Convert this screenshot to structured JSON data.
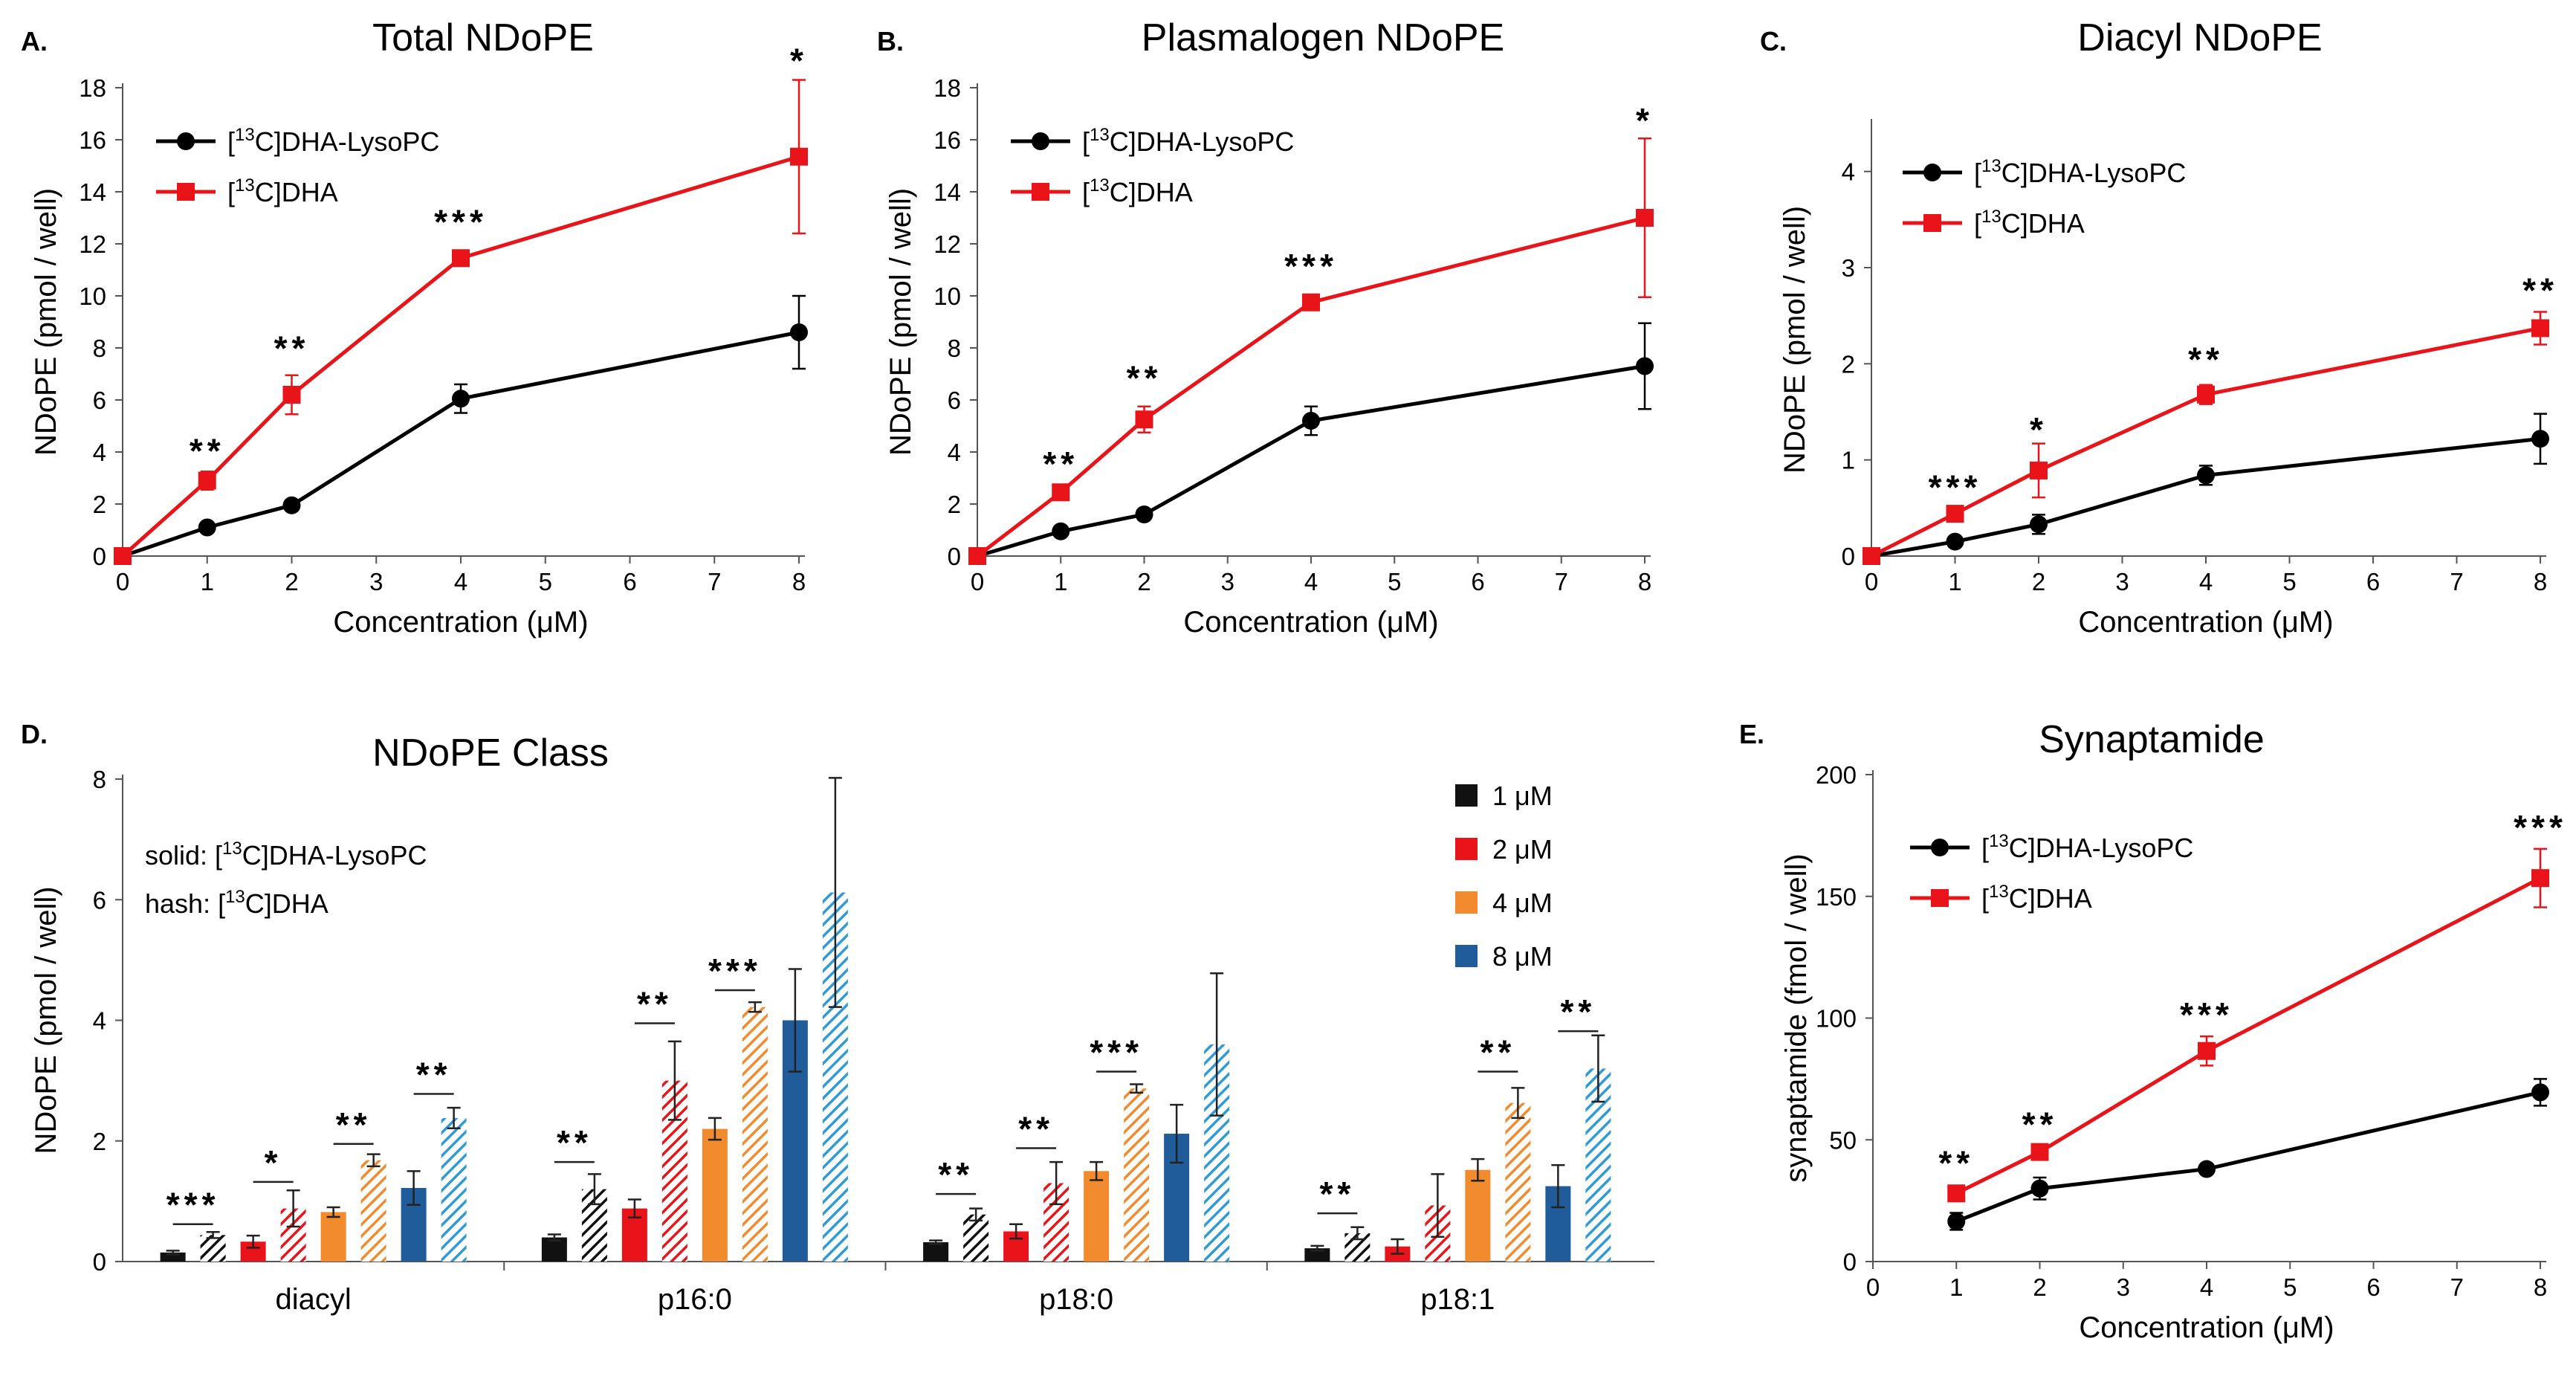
{
  "chart_data": [
    {
      "id": "A",
      "panel_label": "A.",
      "type": "line",
      "title": "Total NDoPE",
      "xlabel": "Concentration (μM)",
      "ylabel": "NDoPE (pmol / well)",
      "xlim": [
        0,
        8
      ],
      "ylim": [
        0,
        18
      ],
      "xticks": [
        "0",
        "1",
        "2",
        "3",
        "4",
        "5",
        "6",
        "7",
        "8"
      ],
      "yticks": [
        "0",
        "2",
        "4",
        "6",
        "8",
        "10",
        "12",
        "14",
        "16",
        "18"
      ],
      "x": [
        0,
        1,
        2,
        4,
        8
      ],
      "series": [
        {
          "name": "[13C]DHA-LysoPC",
          "name_prefix": "[",
          "name_sup": "13",
          "name_suffix": "C]DHA-LysoPC",
          "color": "#000000",
          "marker": "circle",
          "values": [
            0,
            1.1,
            1.95,
            6.05,
            8.6
          ],
          "errors": [
            0,
            0.15,
            0.2,
            0.55,
            1.4
          ]
        },
        {
          "name": "[13C]DHA",
          "name_prefix": "[",
          "name_sup": "13",
          "name_suffix": "C]DHA",
          "color": "#e8141a",
          "marker": "square",
          "values": [
            0,
            2.9,
            6.2,
            11.45,
            15.35
          ],
          "errors": [
            0,
            0.35,
            0.75,
            0.25,
            2.95
          ]
        }
      ],
      "annotations": [
        {
          "x": 1,
          "y": 4.1,
          "text": "**"
        },
        {
          "x": 2,
          "y": 8.05,
          "text": "**"
        },
        {
          "x": 4,
          "y": 12.9,
          "text": "***"
        },
        {
          "x": 8,
          "y": 19.1,
          "text": "*"
        }
      ]
    },
    {
      "id": "B",
      "panel_label": "B.",
      "type": "line",
      "title": "Plasmalogen NDoPE",
      "xlabel": "Concentration (μM)",
      "ylabel": "NDoPE (pmol / well)",
      "xlim": [
        0,
        8
      ],
      "ylim": [
        0,
        18
      ],
      "xticks": [
        "0",
        "1",
        "2",
        "3",
        "4",
        "5",
        "6",
        "7",
        "8"
      ],
      "yticks": [
        "0",
        "2",
        "4",
        "6",
        "8",
        "10",
        "12",
        "14",
        "16",
        "18"
      ],
      "x": [
        0,
        1,
        2,
        4,
        8
      ],
      "series": [
        {
          "name": "[13C]DHA-LysoPC",
          "name_prefix": "[",
          "name_sup": "13",
          "name_suffix": "C]DHA-LysoPC",
          "color": "#000000",
          "marker": "circle",
          "values": [
            0,
            0.95,
            1.6,
            5.2,
            7.3
          ],
          "errors": [
            0,
            0.1,
            0.2,
            0.55,
            1.65
          ]
        },
        {
          "name": "[13C]DHA",
          "name_prefix": "[",
          "name_sup": "13",
          "name_suffix": "C]DHA",
          "color": "#e8141a",
          "marker": "square",
          "values": [
            0,
            2.45,
            5.25,
            9.75,
            13.0
          ],
          "errors": [
            0,
            0.3,
            0.5,
            0.2,
            3.05
          ]
        }
      ],
      "annotations": [
        {
          "x": 1,
          "y": 3.6,
          "text": "**"
        },
        {
          "x": 2,
          "y": 6.9,
          "text": "**"
        },
        {
          "x": 4,
          "y": 11.2,
          "text": "***"
        },
        {
          "x": 8,
          "y": 16.8,
          "text": "*"
        }
      ]
    },
    {
      "id": "C",
      "panel_label": "C.",
      "type": "line",
      "title": "Diacyl NDoPE",
      "xlabel": "Concentration (μM)",
      "ylabel": "NDoPE (pmol / well)",
      "xlim": [
        0,
        8
      ],
      "ylim": [
        0,
        4.5
      ],
      "xticks": [
        "0",
        "1",
        "2",
        "3",
        "4",
        "5",
        "6",
        "7",
        "8"
      ],
      "yticks": [
        "0",
        "1",
        "2",
        "3",
        "4"
      ],
      "x": [
        0,
        1,
        2,
        4,
        8
      ],
      "series": [
        {
          "name": "[13C]DHA-LysoPC",
          "name_prefix": "[",
          "name_sup": "13",
          "name_suffix": "C]DHA-LysoPC",
          "color": "#000000",
          "marker": "circle",
          "values": [
            0,
            0.15,
            0.33,
            0.84,
            1.22
          ],
          "errors": [
            0,
            0.04,
            0.1,
            0.1,
            0.26
          ]
        },
        {
          "name": "[13C]DHA",
          "name_prefix": "[",
          "name_sup": "13",
          "name_suffix": "C]DHA",
          "color": "#e8141a",
          "marker": "square",
          "values": [
            0,
            0.44,
            0.89,
            1.68,
            2.37
          ],
          "errors": [
            0,
            0.04,
            0.28,
            0.1,
            0.17
          ]
        }
      ],
      "annotations": [
        {
          "x": 1,
          "y": 0.73,
          "text": "***"
        },
        {
          "x": 2,
          "y": 1.33,
          "text": "*"
        },
        {
          "x": 4,
          "y": 2.06,
          "text": "**"
        },
        {
          "x": 8,
          "y": 2.78,
          "text": "**"
        }
      ]
    },
    {
      "id": "D",
      "panel_label": "D.",
      "type": "bar",
      "title": "NDoPE Class",
      "xlabel": "",
      "ylabel": "NDoPE (pmol / well)",
      "ylim": [
        0,
        8
      ],
      "yticks": [
        "0",
        "2",
        "4",
        "6",
        "8"
      ],
      "categories": [
        "diacyl",
        "p16:0",
        "p18:0",
        "p18:1"
      ],
      "note_solid": "solid: [13C]DHA-LysoPC",
      "note_hash": "hash: [13C]DHA",
      "legend": [
        {
          "label": "1 μM",
          "color": "#111111"
        },
        {
          "label": "2 μM",
          "color": "#e8141a"
        },
        {
          "label": "4 μM",
          "color": "#f28a2e"
        },
        {
          "label": "8 μM",
          "color": "#1f5c99"
        }
      ],
      "hash_colors": [
        "#111111",
        "#e8141a",
        "#f28a2e",
        "#2e9bd6"
      ],
      "series": [
        {
          "name": "1 μM solid",
          "values": [
            0.15,
            0.4,
            0.32,
            0.22
          ],
          "errors": [
            0.03,
            0.05,
            0.03,
            0.04
          ]
        },
        {
          "name": "1 μM hash",
          "values": [
            0.44,
            1.2,
            0.78,
            0.47
          ],
          "errors": [
            0.05,
            0.25,
            0.1,
            0.1
          ]
        },
        {
          "name": "2 μM solid",
          "values": [
            0.33,
            0.88,
            0.5,
            0.25
          ],
          "errors": [
            0.1,
            0.15,
            0.12,
            0.12
          ]
        },
        {
          "name": "2 μM hash",
          "values": [
            0.88,
            3.0,
            1.3,
            0.93
          ],
          "errors": [
            0.3,
            0.65,
            0.35,
            0.52
          ]
        },
        {
          "name": "4 μM solid",
          "values": [
            0.82,
            2.2,
            1.5,
            1.52
          ],
          "errors": [
            0.08,
            0.18,
            0.15,
            0.18
          ]
        },
        {
          "name": "4 μM hash",
          "values": [
            1.68,
            4.22,
            2.87,
            2.63
          ],
          "errors": [
            0.1,
            0.08,
            0.07,
            0.25
          ]
        },
        {
          "name": "8 μM solid",
          "values": [
            1.22,
            4.0,
            2.12,
            1.25
          ],
          "errors": [
            0.28,
            0.85,
            0.48,
            0.35
          ]
        },
        {
          "name": "8 μM hash",
          "values": [
            2.38,
            6.12,
            3.6,
            3.2
          ],
          "errors": [
            0.17,
            1.9,
            1.18,
            0.55
          ]
        }
      ],
      "annotations": [
        {
          "category": 0,
          "pair": 0,
          "text": "***",
          "y": 0.62
        },
        {
          "category": 0,
          "pair": 1,
          "text": "*",
          "y": 1.32
        },
        {
          "category": 0,
          "pair": 2,
          "text": "**",
          "y": 1.95
        },
        {
          "category": 0,
          "pair": 3,
          "text": "**",
          "y": 2.78
        },
        {
          "category": 1,
          "pair": 0,
          "text": "**",
          "y": 1.65
        },
        {
          "category": 1,
          "pair": 1,
          "text": "**",
          "y": 3.95
        },
        {
          "category": 1,
          "pair": 2,
          "text": "***",
          "y": 4.5
        },
        {
          "category": 2,
          "pair": 0,
          "text": "**",
          "y": 1.12
        },
        {
          "category": 2,
          "pair": 1,
          "text": "**",
          "y": 1.88
        },
        {
          "category": 2,
          "pair": 2,
          "text": "***",
          "y": 3.15
        },
        {
          "category": 3,
          "pair": 0,
          "text": "**",
          "y": 0.8
        },
        {
          "category": 3,
          "pair": 2,
          "text": "**",
          "y": 3.15
        },
        {
          "category": 3,
          "pair": 3,
          "text": "**",
          "y": 3.82
        }
      ]
    },
    {
      "id": "E",
      "panel_label": "E.",
      "type": "line",
      "title": "Synaptamide",
      "xlabel": "Concentration (μM)",
      "ylabel": "synaptamide  (fmol / well)",
      "xlim": [
        0,
        8
      ],
      "ylim": [
        0,
        200
      ],
      "xticks": [
        "0",
        "1",
        "2",
        "3",
        "4",
        "5",
        "6",
        "7",
        "8"
      ],
      "yticks": [
        "0",
        "50",
        "100",
        "150",
        "200"
      ],
      "x": [
        1,
        2,
        4,
        8
      ],
      "series": [
        {
          "name": "[13C]DHA-LysoPC",
          "name_prefix": "[",
          "name_sup": "13",
          "name_suffix": "C]DHA-LysoPC",
          "color": "#000000",
          "marker": "circle",
          "values": [
            16.5,
            30,
            38,
            69.5
          ],
          "errors": [
            3.5,
            4.5,
            1.5,
            5.5
          ]
        },
        {
          "name": "[13C]DHA",
          "name_prefix": "[",
          "name_sup": "13",
          "name_suffix": "C]DHA",
          "color": "#e8141a",
          "marker": "square",
          "values": [
            28,
            45,
            86.5,
            157.5
          ],
          "errors": [
            1.5,
            2.5,
            6,
            12
          ]
        }
      ],
      "annotations": [
        {
          "x": 1,
          "y": 41,
          "text": "**"
        },
        {
          "x": 2,
          "y": 57,
          "text": "**"
        },
        {
          "x": 4,
          "y": 102,
          "text": "***"
        },
        {
          "x": 8,
          "y": 179,
          "text": "***"
        }
      ]
    }
  ]
}
